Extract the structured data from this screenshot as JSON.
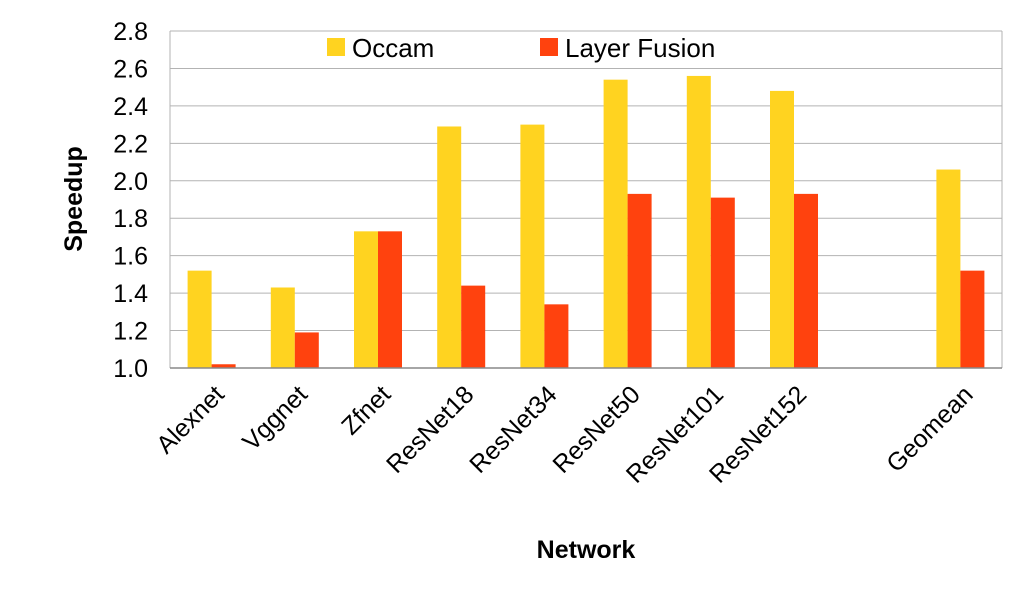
{
  "chart_data": {
    "type": "bar",
    "title": "",
    "xlabel": "Network",
    "ylabel": "Speedup",
    "ylim": [
      1.0,
      2.8
    ],
    "yticks": [
      1.0,
      1.2,
      1.4,
      1.6,
      1.8,
      2.0,
      2.2,
      2.4,
      2.6,
      2.8
    ],
    "ytick_labels": [
      "1.0",
      "1.2",
      "1.4",
      "1.6",
      "1.8",
      "2.0",
      "2.2",
      "2.4",
      "2.6",
      "2.8"
    ],
    "grid": true,
    "legend_position": "top-center",
    "categories": [
      "Alexnet",
      "Vggnet",
      "Zfnet",
      "ResNet18",
      "ResNet34",
      "ResNet50",
      "ResNet101",
      "ResNet152",
      "",
      "Geomean"
    ],
    "series": [
      {
        "name": "Occam",
        "color": "#FFD320",
        "values": [
          1.52,
          1.43,
          1.73,
          2.29,
          2.3,
          2.54,
          2.56,
          2.48,
          null,
          2.06
        ]
      },
      {
        "name": "Layer Fusion",
        "color": "#FF420E",
        "values": [
          1.02,
          1.19,
          1.73,
          1.44,
          1.34,
          1.93,
          1.91,
          1.93,
          null,
          1.52
        ]
      }
    ]
  }
}
